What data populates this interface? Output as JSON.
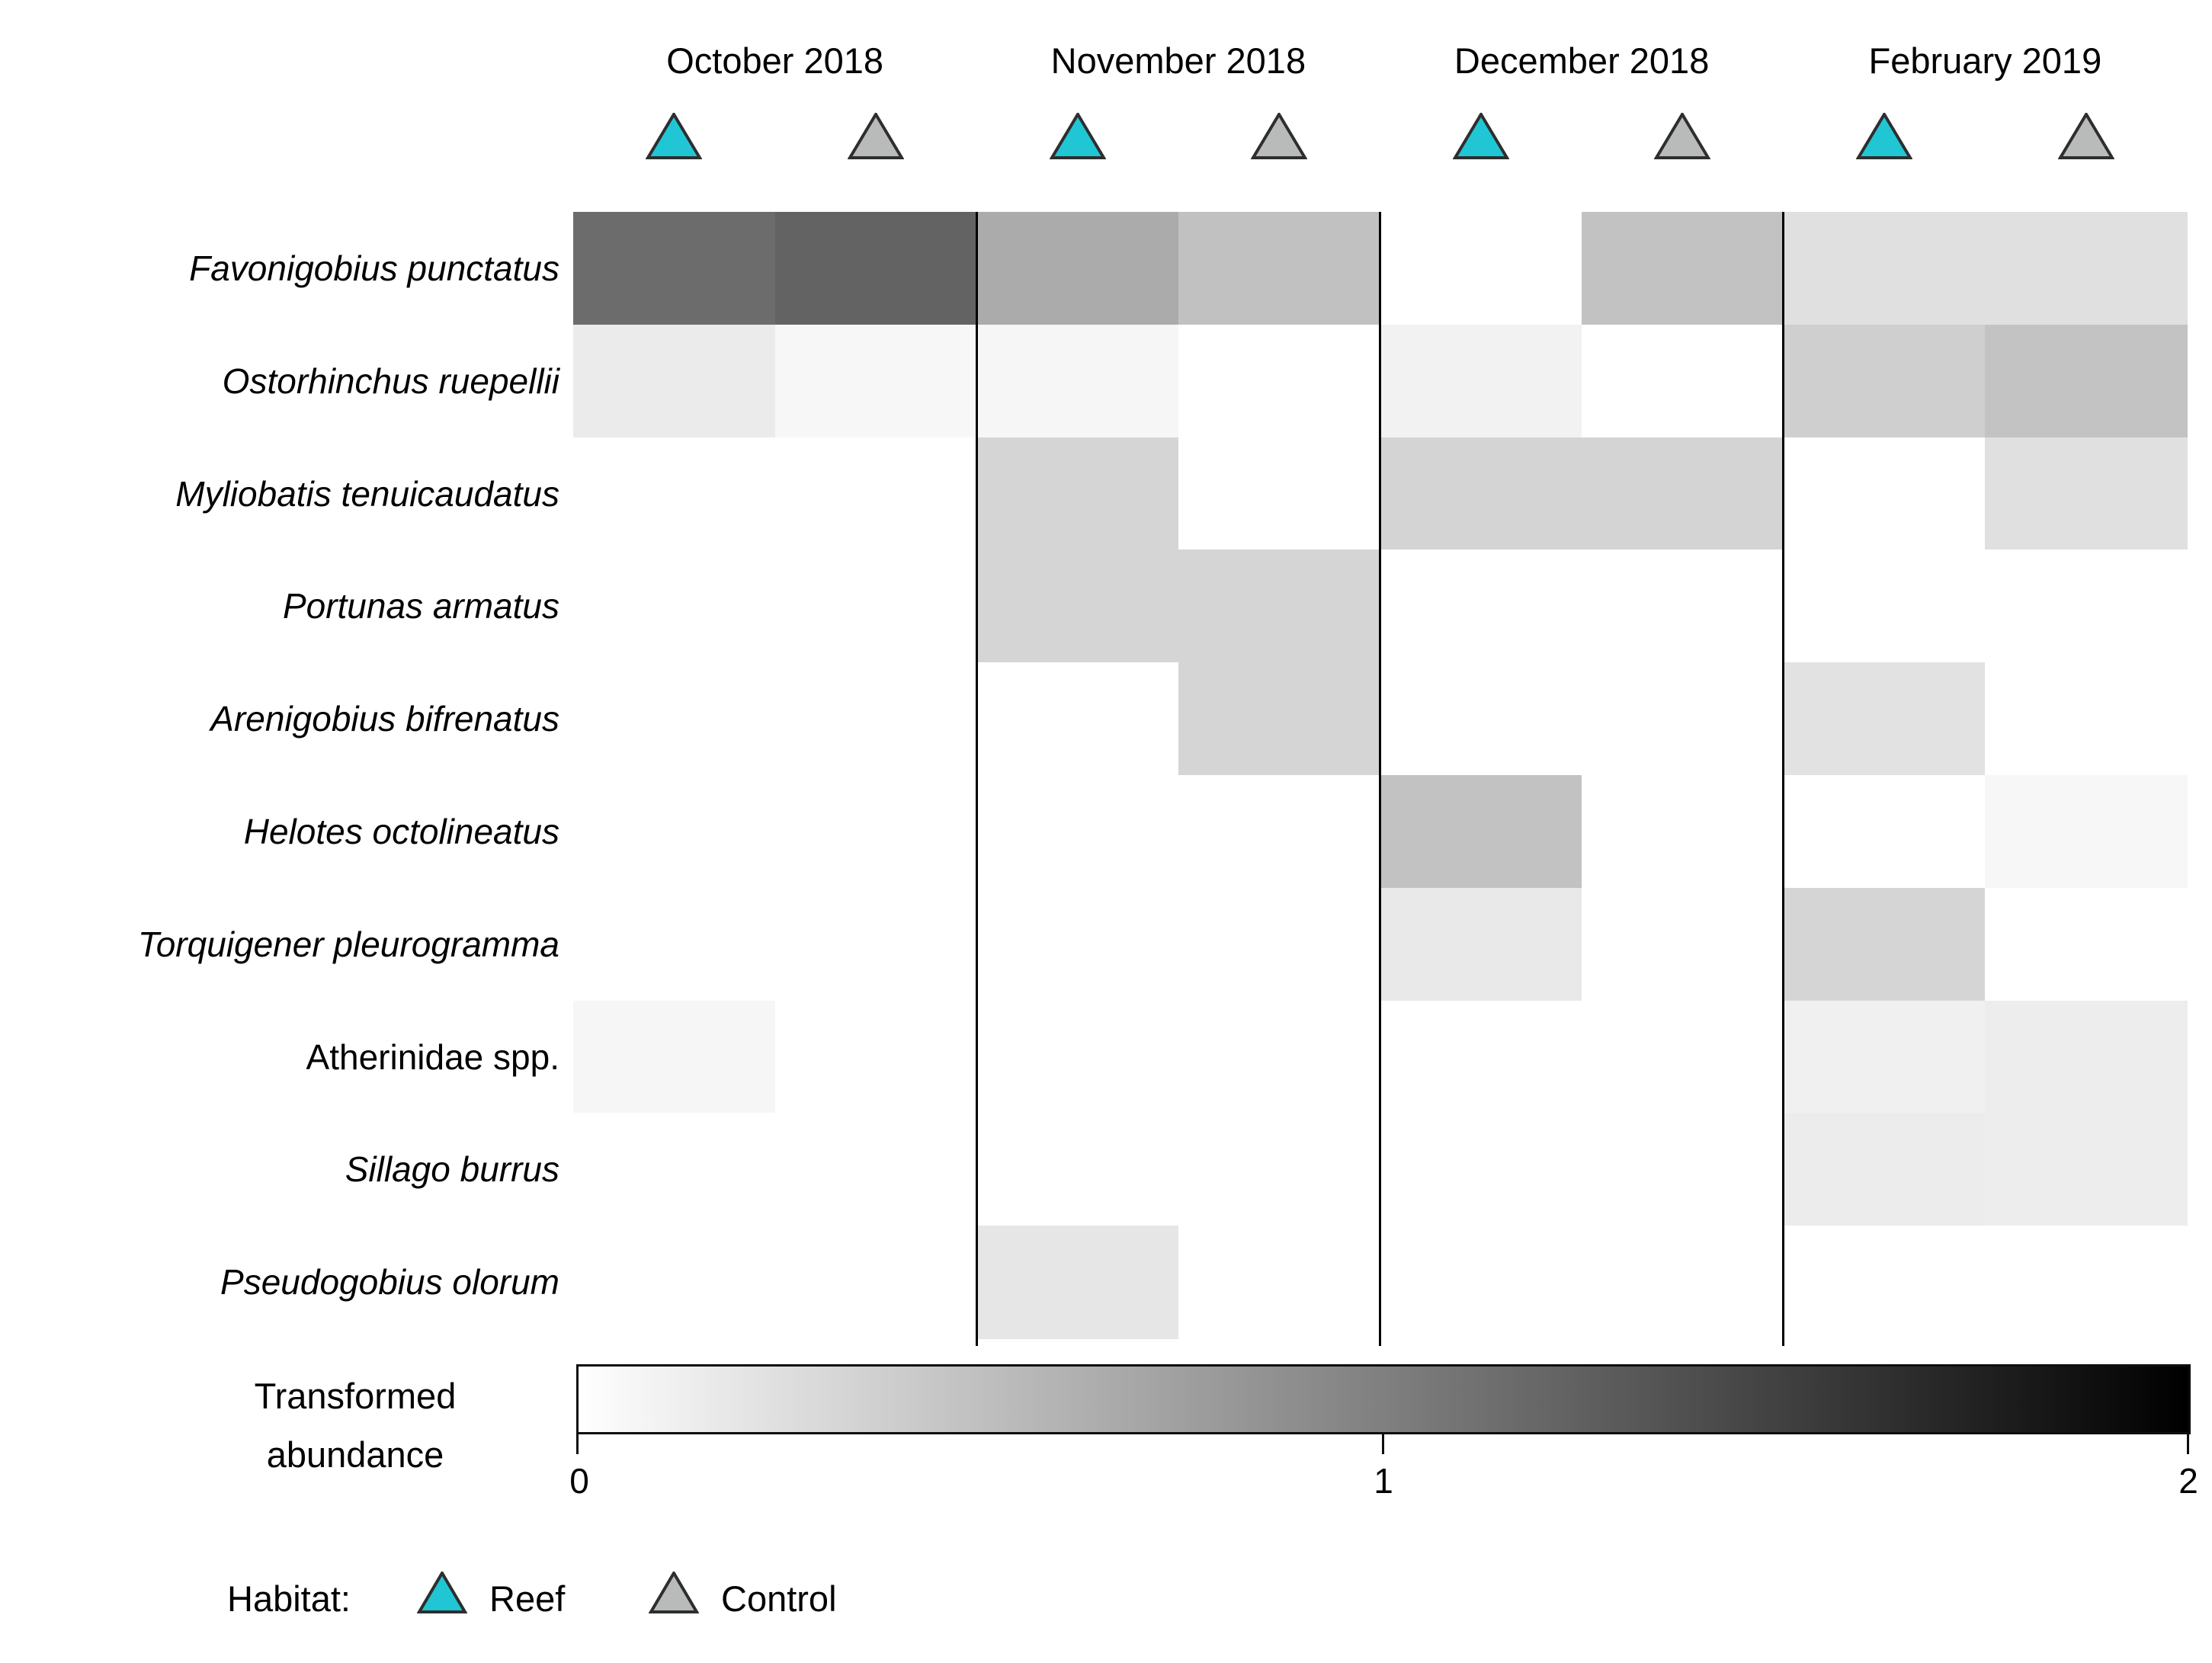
{
  "figure": {
    "legend": {
      "habitat_label": "Habitat:",
      "items": [
        {
          "label": "Reef",
          "color": "#20c6d4"
        },
        {
          "label": "Control",
          "color": "#b9baba"
        }
      ]
    },
    "colorbar": {
      "label_line1": "Transformed",
      "label_line2": "abundance",
      "ticks": [
        "0",
        "1",
        "2"
      ],
      "start_color": "#ffffff",
      "end_color": "#000000"
    }
  },
  "chart_data": {
    "type": "heatmap",
    "title": "",
    "value_scale": {
      "label": "Transformed abundance",
      "min": 0,
      "max": 2,
      "low_color": "#ffffff",
      "high_color": "#000000"
    },
    "x_groups": [
      "October 2018",
      "November 2018",
      "December 2018",
      "February 2019"
    ],
    "columns": [
      {
        "month": "October 2018",
        "habitat": "Reef"
      },
      {
        "month": "October 2018",
        "habitat": "Control"
      },
      {
        "month": "November 2018",
        "habitat": "Reef"
      },
      {
        "month": "November 2018",
        "habitat": "Control"
      },
      {
        "month": "December 2018",
        "habitat": "Reef"
      },
      {
        "month": "December 2018",
        "habitat": "Control"
      },
      {
        "month": "February 2019",
        "habitat": "Reef"
      },
      {
        "month": "February 2019",
        "habitat": "Control"
      }
    ],
    "rows": [
      {
        "species": "Favonigobius punctatus",
        "italic": true,
        "values": [
          1.15,
          1.22,
          0.66,
          0.49,
          0,
          0.48,
          0.24,
          0.24
        ]
      },
      {
        "species": "Ostorhinchus ruepellii",
        "italic": true,
        "values": [
          0.16,
          0.06,
          0.07,
          0,
          0.1,
          0,
          0.38,
          0.47
        ]
      },
      {
        "species": "Myliobatis tenuicaudatus",
        "italic": true,
        "values": [
          0,
          0,
          0.33,
          0,
          0.34,
          0.34,
          0,
          0.24
        ]
      },
      {
        "species": "Portunas armatus",
        "italic": true,
        "values": [
          0,
          0,
          0.33,
          0.33,
          0,
          0,
          0,
          0
        ]
      },
      {
        "species": "Arenigobius bifrenatus",
        "italic": true,
        "values": [
          0,
          0,
          0,
          0.33,
          0,
          0,
          0.23,
          0
        ]
      },
      {
        "species": "Helotes octolineatus",
        "italic": true,
        "values": [
          0,
          0,
          0,
          0,
          0.48,
          0,
          0,
          0.06
        ]
      },
      {
        "species": "Torquigener pleurogramma",
        "italic": true,
        "values": [
          0,
          0,
          0,
          0,
          0.17,
          0,
          0.33,
          0
        ]
      },
      {
        "species": "Atherinidae spp.",
        "italic": false,
        "values": [
          0.07,
          0,
          0,
          0,
          0,
          0,
          0.12,
          0.14
        ]
      },
      {
        "species": "Sillago burrus",
        "italic": true,
        "values": [
          0,
          0,
          0,
          0,
          0,
          0,
          0.15,
          0.14
        ]
      },
      {
        "species": "Pseudogobius olorum",
        "italic": true,
        "values": [
          0,
          0,
          0.2,
          0,
          0,
          0,
          0,
          0
        ]
      }
    ]
  }
}
